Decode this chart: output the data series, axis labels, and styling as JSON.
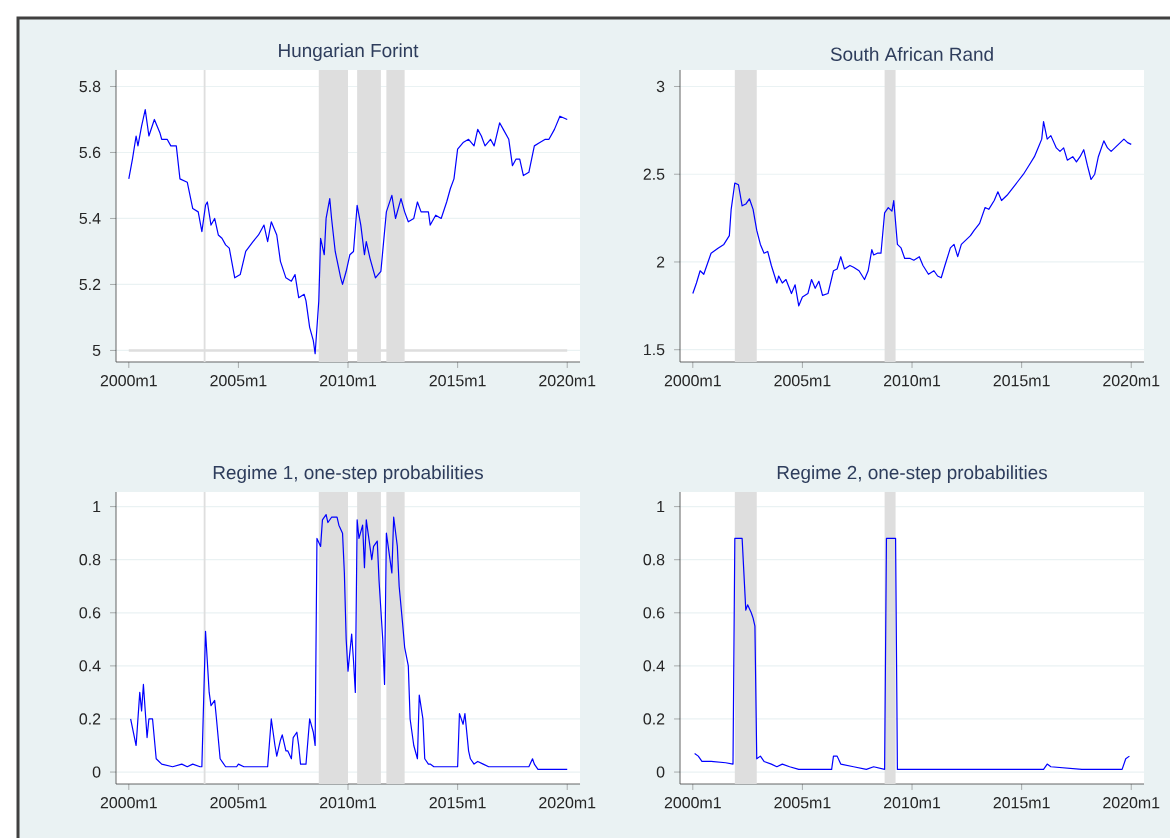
{
  "chart_data": [
    {
      "type": "line",
      "title": "Hungarian Forint",
      "color": "#0000ff",
      "grid": "y",
      "xlim": [
        "1999-06",
        "2020-08"
      ],
      "ylim": [
        4.965,
        5.85
      ],
      "xticks": [
        {
          "value": "2000-01",
          "label": "2000m1"
        },
        {
          "value": "2005-01",
          "label": "2005m1"
        },
        {
          "value": "2010-01",
          "label": "2010m1"
        },
        {
          "value": "2015-01",
          "label": "2015m1"
        },
        {
          "value": "2020-01",
          "label": "2020m1"
        }
      ],
      "yticks": [
        5,
        5.2,
        5.4,
        5.6,
        5.8
      ],
      "bands": [
        {
          "axis": "x",
          "from": "2003-06",
          "to": "2003-07",
          "color": "#dedede"
        },
        {
          "axis": "x",
          "from": "2008-09",
          "to": "2010-01",
          "color": "#dedede"
        },
        {
          "axis": "x",
          "from": "2010-06",
          "to": "2011-07",
          "color": "#dedede"
        },
        {
          "axis": "x",
          "from": "2011-10",
          "to": "2012-08",
          "color": "#dedede"
        }
      ],
      "ref_lines": [
        {
          "axis": "y",
          "value": 5,
          "color": "#dedede"
        }
      ],
      "x": [
        "2000-01",
        "2000-03",
        "2000-05",
        "2000-06",
        "2000-08",
        "2000-10",
        "2000-12",
        "2001-03",
        "2001-06",
        "2001-07",
        "2001-10",
        "2001-12",
        "2002-03",
        "2002-05",
        "2002-09",
        "2002-12",
        "2003-03",
        "2003-05",
        "2003-07",
        "2003-08",
        "2003-10",
        "2003-12",
        "2004-02",
        "2004-04",
        "2004-06",
        "2004-08",
        "2004-11",
        "2005-02",
        "2005-05",
        "2005-09",
        "2005-12",
        "2006-03",
        "2006-05",
        "2006-07",
        "2006-10",
        "2006-12",
        "2007-03",
        "2007-06",
        "2007-08",
        "2007-10",
        "2008-01",
        "2008-02",
        "2008-04",
        "2008-06",
        "2008-07",
        "2008-09",
        "2008-10",
        "2008-12",
        "2009-01",
        "2009-03",
        "2009-04",
        "2009-06",
        "2009-09",
        "2009-10",
        "2009-12",
        "2010-02",
        "2010-04",
        "2010-06",
        "2010-08",
        "2010-10",
        "2010-11",
        "2011-01",
        "2011-04",
        "2011-07",
        "2011-09",
        "2011-10",
        "2012-01",
        "2012-03",
        "2012-06",
        "2012-08",
        "2012-10",
        "2013-01",
        "2013-03",
        "2013-05",
        "2013-09",
        "2013-10",
        "2014-01",
        "2014-04",
        "2014-07",
        "2014-09",
        "2014-11",
        "2015-01",
        "2015-04",
        "2015-07",
        "2015-10",
        "2015-12",
        "2016-02",
        "2016-04",
        "2016-07",
        "2016-09",
        "2016-12",
        "2017-02",
        "2017-05",
        "2017-07",
        "2017-09",
        "2017-11",
        "2018-01",
        "2018-04",
        "2018-07",
        "2018-10",
        "2019-01",
        "2019-03",
        "2019-06",
        "2019-09",
        "2020-01"
      ],
      "values": [
        5.52,
        5.58,
        5.65,
        5.62,
        5.68,
        5.73,
        5.65,
        5.7,
        5.66,
        5.64,
        5.64,
        5.62,
        5.62,
        5.52,
        5.51,
        5.43,
        5.42,
        5.36,
        5.44,
        5.45,
        5.38,
        5.4,
        5.35,
        5.34,
        5.32,
        5.31,
        5.22,
        5.23,
        5.3,
        5.33,
        5.35,
        5.38,
        5.33,
        5.39,
        5.35,
        5.27,
        5.22,
        5.21,
        5.23,
        5.16,
        5.17,
        5.15,
        5.07,
        5.03,
        4.99,
        5.15,
        5.34,
        5.29,
        5.4,
        5.46,
        5.4,
        5.3,
        5.22,
        5.2,
        5.24,
        5.29,
        5.3,
        5.44,
        5.38,
        5.29,
        5.33,
        5.28,
        5.22,
        5.24,
        5.36,
        5.42,
        5.47,
        5.4,
        5.46,
        5.42,
        5.39,
        5.4,
        5.45,
        5.42,
        5.42,
        5.38,
        5.41,
        5.4,
        5.45,
        5.49,
        5.52,
        5.61,
        5.63,
        5.64,
        5.62,
        5.67,
        5.65,
        5.62,
        5.64,
        5.62,
        5.69,
        5.67,
        5.64,
        5.56,
        5.58,
        5.58,
        5.53,
        5.54,
        5.62,
        5.63,
        5.64,
        5.64,
        5.67,
        5.71,
        5.7
      ]
    },
    {
      "type": "line",
      "title": "South African Rand",
      "color": "#0000ff",
      "grid": "y",
      "xlim": [
        "1999-06",
        "2020-08"
      ],
      "ylim": [
        1.43,
        3.094
      ],
      "xticks": [
        {
          "value": "2000-01",
          "label": "2000m1"
        },
        {
          "value": "2005-01",
          "label": "2005m1"
        },
        {
          "value": "2010-01",
          "label": "2010m1"
        },
        {
          "value": "2015-01",
          "label": "2015m1"
        },
        {
          "value": "2020-01",
          "label": "2020m1"
        }
      ],
      "yticks": [
        1.5,
        2,
        2.5,
        3
      ],
      "bands": [
        {
          "axis": "x",
          "from": "2001-12",
          "to": "2002-12",
          "color": "#dedede"
        },
        {
          "axis": "x",
          "from": "2008-10",
          "to": "2009-04",
          "color": "#dedede"
        }
      ],
      "x": [
        "2000-01",
        "2000-03",
        "2000-05",
        "2000-07",
        "2000-10",
        "2000-11",
        "2001-03",
        "2001-06",
        "2001-09",
        "2001-10",
        "2001-12",
        "2002-02",
        "2002-04",
        "2002-06",
        "2002-08",
        "2002-10",
        "2002-12",
        "2003-02",
        "2003-04",
        "2003-06",
        "2003-08",
        "2003-11",
        "2003-12",
        "2004-02",
        "2004-04",
        "2004-07",
        "2004-09",
        "2004-11",
        "2005-01",
        "2005-04",
        "2005-06",
        "2005-08",
        "2005-10",
        "2005-12",
        "2006-03",
        "2006-06",
        "2006-08",
        "2006-10",
        "2006-12",
        "2007-03",
        "2007-05",
        "2007-08",
        "2007-11",
        "2008-01",
        "2008-03",
        "2008-04",
        "2008-06",
        "2008-08",
        "2008-10",
        "2008-12",
        "2009-02",
        "2009-03",
        "2009-05",
        "2009-07",
        "2009-09",
        "2009-12",
        "2010-02",
        "2010-05",
        "2010-07",
        "2010-10",
        "2011-01",
        "2011-03",
        "2011-05",
        "2011-07",
        "2011-10",
        "2011-12",
        "2012-02",
        "2012-04",
        "2012-06",
        "2012-09",
        "2012-11",
        "2013-02",
        "2013-05",
        "2013-07",
        "2013-10",
        "2013-12",
        "2014-02",
        "2014-05",
        "2014-08",
        "2014-11",
        "2015-02",
        "2015-05",
        "2015-08",
        "2015-10",
        "2015-12",
        "2016-01",
        "2016-03",
        "2016-05",
        "2016-08",
        "2016-10",
        "2016-12",
        "2017-02",
        "2017-05",
        "2017-07",
        "2017-09",
        "2017-11",
        "2018-01",
        "2018-03",
        "2018-05",
        "2018-07",
        "2018-10",
        "2018-12",
        "2019-02",
        "2019-04",
        "2019-06",
        "2019-09",
        "2019-11",
        "2020-01"
      ],
      "values": [
        1.82,
        1.88,
        1.95,
        1.93,
        2.02,
        2.05,
        2.08,
        2.1,
        2.15,
        2.3,
        2.45,
        2.44,
        2.32,
        2.33,
        2.36,
        2.3,
        2.18,
        2.1,
        2.05,
        2.06,
        1.98,
        1.88,
        1.92,
        1.88,
        1.9,
        1.82,
        1.87,
        1.75,
        1.8,
        1.82,
        1.9,
        1.85,
        1.89,
        1.81,
        1.82,
        1.95,
        1.96,
        2.03,
        1.96,
        1.98,
        1.97,
        1.95,
        1.9,
        1.95,
        2.07,
        2.04,
        2.05,
        2.05,
        2.28,
        2.31,
        2.29,
        2.35,
        2.1,
        2.08,
        2.02,
        2.02,
        2.01,
        2.03,
        1.98,
        1.93,
        1.95,
        1.92,
        1.91,
        1.98,
        2.08,
        2.1,
        2.03,
        2.1,
        2.12,
        2.15,
        2.18,
        2.22,
        2.31,
        2.3,
        2.35,
        2.4,
        2.35,
        2.38,
        2.42,
        2.46,
        2.5,
        2.55,
        2.6,
        2.65,
        2.7,
        2.8,
        2.7,
        2.72,
        2.65,
        2.63,
        2.65,
        2.58,
        2.6,
        2.57,
        2.6,
        2.64,
        2.55,
        2.47,
        2.5,
        2.6,
        2.69,
        2.65,
        2.63,
        2.65,
        2.67,
        2.7,
        2.68,
        2.67
      ]
    },
    {
      "type": "line",
      "title": "Regime 1, one-step probabilities",
      "color": "#0000ff",
      "grid": "y",
      "xlim": [
        "1999-06",
        "2020-08"
      ],
      "ylim": [
        -0.045,
        1.055
      ],
      "xticks": [
        {
          "value": "2000-01",
          "label": "2000m1"
        },
        {
          "value": "2005-01",
          "label": "2005m1"
        },
        {
          "value": "2010-01",
          "label": "2010m1"
        },
        {
          "value": "2015-01",
          "label": "2015m1"
        },
        {
          "value": "2020-01",
          "label": "2020m1"
        }
      ],
      "yticks": [
        0,
        0.2,
        0.4,
        0.6,
        0.8,
        1
      ],
      "bands": [
        {
          "axis": "x",
          "from": "2003-06",
          "to": "2003-07",
          "color": "#dedede"
        },
        {
          "axis": "x",
          "from": "2008-09",
          "to": "2010-01",
          "color": "#dedede"
        },
        {
          "axis": "x",
          "from": "2010-06",
          "to": "2011-07",
          "color": "#dedede"
        },
        {
          "axis": "x",
          "from": "2011-10",
          "to": "2012-08",
          "color": "#dedede"
        }
      ],
      "x": [
        "2000-02",
        "2000-05",
        "2000-07",
        "2000-08",
        "2000-09",
        "2000-11",
        "2000-12",
        "2001-02",
        "2001-04",
        "2001-07",
        "2002-01",
        "2002-06",
        "2002-09",
        "2002-12",
        "2003-04",
        "2003-05",
        "2003-07",
        "2003-09",
        "2003-10",
        "2003-12",
        "2004-01",
        "2004-03",
        "2004-06",
        "2004-12",
        "2005-01",
        "2005-04",
        "2005-09",
        "2006-03",
        "2006-05",
        "2006-07",
        "2006-09",
        "2006-10",
        "2006-12",
        "2007-01",
        "2007-03",
        "2007-04",
        "2007-06",
        "2007-07",
        "2007-09",
        "2007-10",
        "2007-11",
        "2008-02",
        "2008-04",
        "2008-06",
        "2008-07",
        "2008-08",
        "2008-10",
        "2008-11",
        "2009-01",
        "2009-02",
        "2009-04",
        "2009-05",
        "2009-07",
        "2009-08",
        "2009-10",
        "2009-11",
        "2009-12",
        "2010-01",
        "2010-03",
        "2010-04",
        "2010-05",
        "2010-06",
        "2010-07",
        "2010-09",
        "2010-10",
        "2010-11",
        "2010-12",
        "2011-02",
        "2011-03",
        "2011-05",
        "2011-06",
        "2011-08",
        "2011-09",
        "2011-10",
        "2011-11",
        "2012-01",
        "2012-02",
        "2012-04",
        "2012-05",
        "2012-07",
        "2012-08",
        "2012-10",
        "2012-11",
        "2013-01",
        "2013-03",
        "2013-04",
        "2013-06",
        "2013-07",
        "2013-09",
        "2013-10",
        "2013-12",
        "2014-04",
        "2014-09",
        "2015-01",
        "2015-02",
        "2015-04",
        "2015-05",
        "2015-07",
        "2015-08",
        "2015-10",
        "2015-12",
        "2016-03",
        "2016-06",
        "2017-05",
        "2018-04",
        "2018-06",
        "2018-07",
        "2018-09",
        "2019-03",
        "2020-01"
      ],
      "values": [
        0.2,
        0.1,
        0.3,
        0.23,
        0.33,
        0.13,
        0.2,
        0.2,
        0.05,
        0.03,
        0.02,
        0.03,
        0.02,
        0.03,
        0.02,
        0.02,
        0.53,
        0.3,
        0.25,
        0.27,
        0.2,
        0.05,
        0.02,
        0.02,
        0.03,
        0.02,
        0.02,
        0.02,
        0.02,
        0.2,
        0.1,
        0.06,
        0.12,
        0.14,
        0.08,
        0.08,
        0.05,
        0.13,
        0.15,
        0.1,
        0.03,
        0.03,
        0.2,
        0.15,
        0.1,
        0.88,
        0.85,
        0.95,
        0.97,
        0.94,
        0.96,
        0.96,
        0.96,
        0.93,
        0.9,
        0.75,
        0.5,
        0.38,
        0.52,
        0.42,
        0.3,
        0.95,
        0.88,
        0.93,
        0.77,
        0.95,
        0.9,
        0.8,
        0.85,
        0.87,
        0.72,
        0.5,
        0.33,
        0.9,
        0.85,
        0.75,
        0.96,
        0.85,
        0.7,
        0.55,
        0.47,
        0.4,
        0.2,
        0.1,
        0.05,
        0.29,
        0.2,
        0.05,
        0.03,
        0.03,
        0.02,
        0.02,
        0.02,
        0.02,
        0.22,
        0.18,
        0.22,
        0.08,
        0.05,
        0.03,
        0.04,
        0.03,
        0.02,
        0.02,
        0.02,
        0.05,
        0.03,
        0.01,
        0.01,
        0.01
      ]
    },
    {
      "type": "line",
      "title": "Regime 2, one-step probabilities",
      "color": "#0000ff",
      "grid": "y",
      "xlim": [
        "1999-06",
        "2020-08"
      ],
      "ylim": [
        -0.045,
        1.055
      ],
      "xticks": [
        {
          "value": "2000-01",
          "label": "2000m1"
        },
        {
          "value": "2005-01",
          "label": "2005m1"
        },
        {
          "value": "2010-01",
          "label": "2010m1"
        },
        {
          "value": "2015-01",
          "label": "2015m1"
        },
        {
          "value": "2020-01",
          "label": "2020m1"
        }
      ],
      "yticks": [
        0,
        0.2,
        0.4,
        0.6,
        0.8,
        1
      ],
      "bands": [
        {
          "axis": "x",
          "from": "2001-12",
          "to": "2002-12",
          "color": "#dedede"
        },
        {
          "axis": "x",
          "from": "2008-10",
          "to": "2009-04",
          "color": "#dedede"
        }
      ],
      "x": [
        "2000-02",
        "2000-04",
        "2000-06",
        "2000-11",
        "2001-07",
        "2001-11",
        "2001-12",
        "2002-04",
        "2002-06",
        "2002-07",
        "2002-09",
        "2002-10",
        "2002-11",
        "2002-12",
        "2003-02",
        "2003-04",
        "2003-08",
        "2003-11",
        "2004-02",
        "2004-06",
        "2004-11",
        "2006-05",
        "2006-06",
        "2006-08",
        "2006-10",
        "2007-05",
        "2007-12",
        "2008-04",
        "2008-10",
        "2008-11",
        "2009-04",
        "2009-05",
        "2011-08",
        "2016-01",
        "2016-03",
        "2016-05",
        "2017-10",
        "2019-08",
        "2019-10",
        "2019-12"
      ],
      "values": [
        0.07,
        0.06,
        0.04,
        0.04,
        0.035,
        0.03,
        0.88,
        0.88,
        0.61,
        0.63,
        0.6,
        0.58,
        0.55,
        0.05,
        0.06,
        0.04,
        0.03,
        0.02,
        0.03,
        0.02,
        0.01,
        0.01,
        0.06,
        0.06,
        0.03,
        0.02,
        0.01,
        0.02,
        0.01,
        0.88,
        0.88,
        0.01,
        0.01,
        0.01,
        0.03,
        0.02,
        0.01,
        0.01,
        0.05,
        0.06
      ]
    }
  ]
}
